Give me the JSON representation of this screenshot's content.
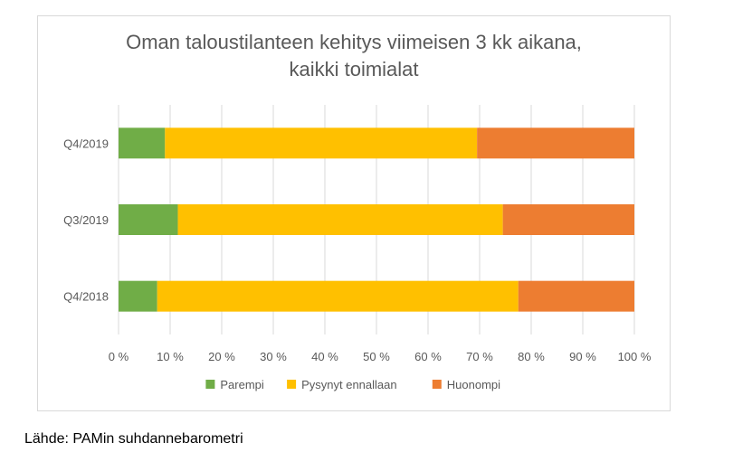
{
  "chart_data": {
    "type": "bar",
    "orientation": "horizontal",
    "stacked": "percent",
    "title_line1": "Oman taloustilanteen kehitys viimeisen 3 kk aikana,",
    "title_line2": "kaikki toimialat",
    "categories": [
      "Q4/2019",
      "Q3/2019",
      "Q4/2018"
    ],
    "series": [
      {
        "name": "Parempi",
        "color": "#70ad47",
        "values": [
          9,
          11.5,
          7.5
        ]
      },
      {
        "name": "Pysynyt ennallaan",
        "color": "#ffc000",
        "values": [
          60.5,
          63,
          70
        ]
      },
      {
        "name": "Huonompi",
        "color": "#ed7d31",
        "values": [
          30.5,
          25.5,
          22.5
        ]
      }
    ],
    "xlim": [
      0,
      100
    ],
    "x_ticks": [
      "0 %",
      "10 %",
      "20 %",
      "30 %",
      "40 %",
      "50 %",
      "60 %",
      "70 %",
      "80 %",
      "90 %",
      "100 %"
    ],
    "grid": "vertical",
    "legend_position": "bottom"
  },
  "source": "Lähde: PAMin suhdannebarometri"
}
